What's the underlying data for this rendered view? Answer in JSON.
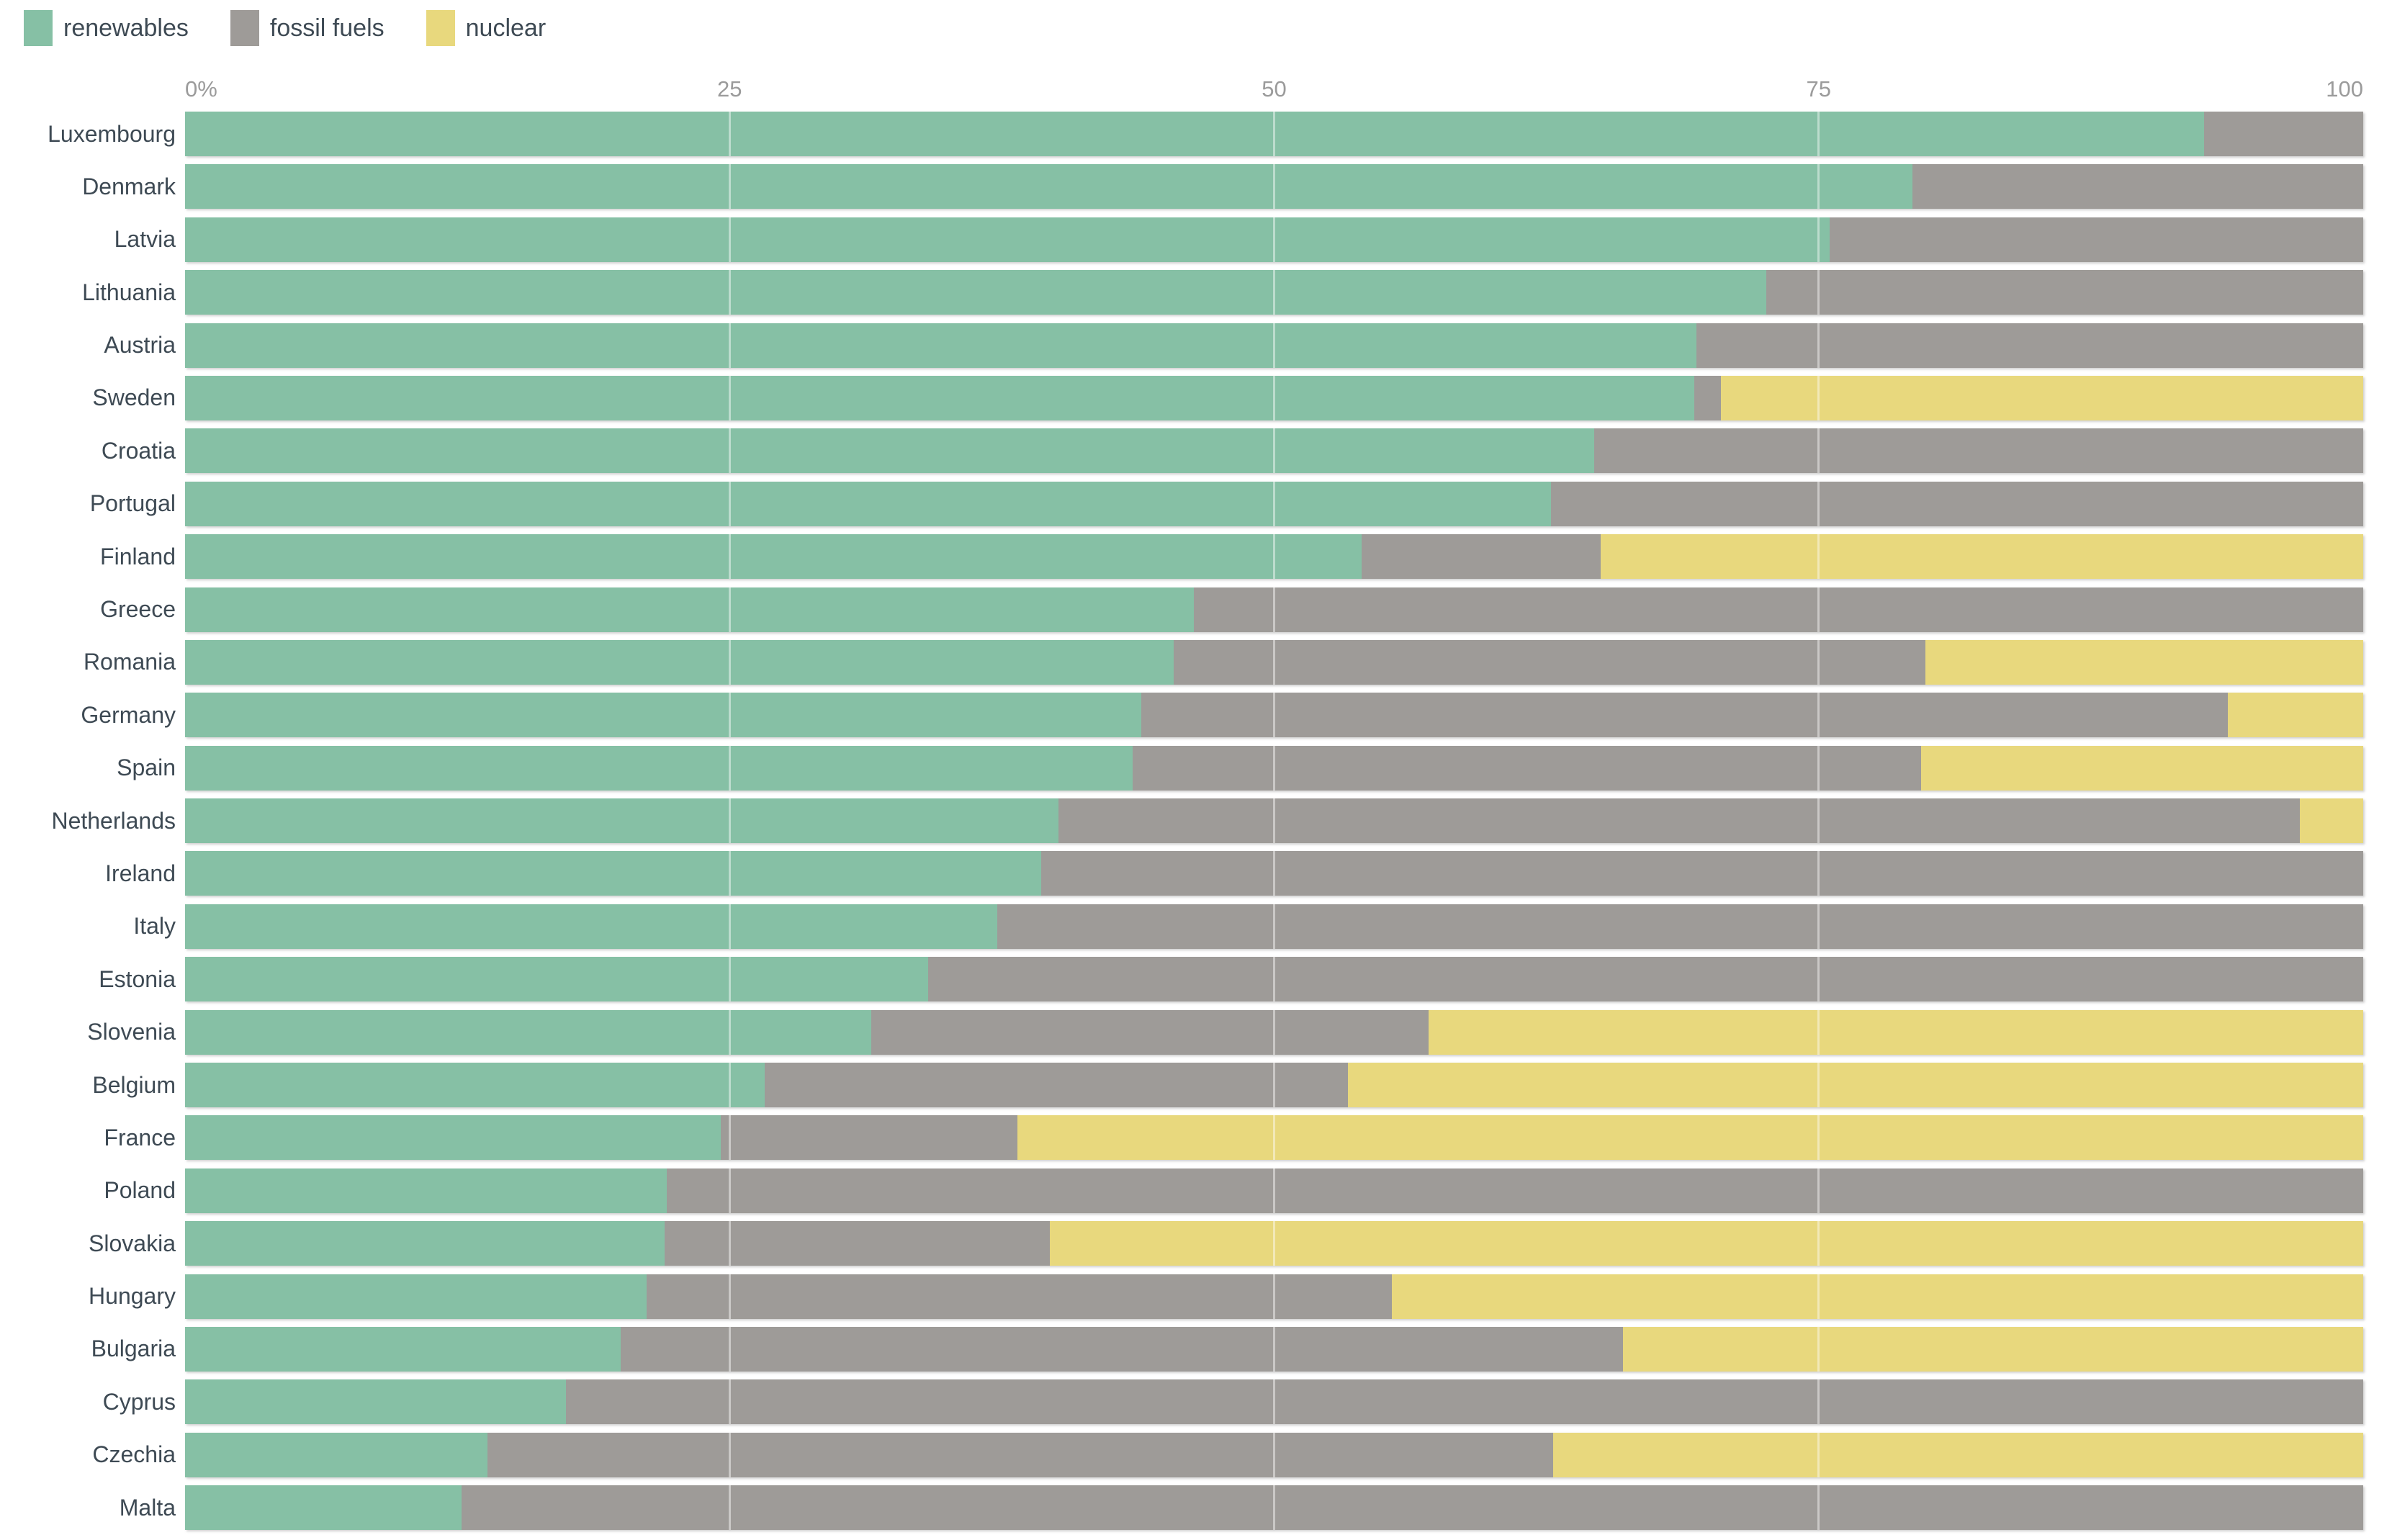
{
  "legend": {
    "items": [
      {
        "label": "renewables",
        "color": "#86C0A5"
      },
      {
        "label": "fossil fuels",
        "color": "#9E9B98"
      },
      {
        "label": "nuclear",
        "color": "#E8D87D"
      }
    ]
  },
  "axis": {
    "tick_labels": [
      "0%",
      "25",
      "50",
      "75",
      "100"
    ],
    "tick_positions": [
      0,
      25,
      50,
      75,
      100
    ]
  },
  "chart_data": {
    "type": "bar",
    "orientation": "horizontal",
    "stacked": true,
    "unit": "percent of electricity mix",
    "xlim": [
      0,
      100
    ],
    "x_ticks": [
      0,
      25,
      50,
      75,
      100
    ],
    "gridlines": [
      25,
      50,
      75
    ],
    "grid": true,
    "legend_position": "top-left",
    "categories": [
      "Luxembourg",
      "Denmark",
      "Latvia",
      "Lithuania",
      "Austria",
      "Sweden",
      "Croatia",
      "Portugal",
      "Finland",
      "Greece",
      "Romania",
      "Germany",
      "Spain",
      "Netherlands",
      "Ireland",
      "Italy",
      "Estonia",
      "Slovenia",
      "Belgium",
      "France",
      "Poland",
      "Slovakia",
      "Hungary",
      "Bulgaria",
      "Cyprus",
      "Czechia",
      "Malta"
    ],
    "series": [
      {
        "name": "renewables",
        "color": "#86C0A5",
        "values": [
          92.7,
          79.3,
          75.5,
          72.6,
          69.4,
          69.3,
          64.7,
          62.7,
          54.0,
          46.3,
          45.4,
          43.9,
          43.5,
          40.1,
          39.3,
          37.3,
          34.1,
          31.5,
          26.6,
          24.6,
          22.1,
          22.0,
          21.2,
          20.0,
          17.5,
          13.9,
          12.7
        ]
      },
      {
        "name": "fossil fuels",
        "color": "#9E9B98",
        "values": [
          7.3,
          20.7,
          24.5,
          27.4,
          30.6,
          1.2,
          35.3,
          37.3,
          11.0,
          53.7,
          34.5,
          49.9,
          36.2,
          57.0,
          60.7,
          62.7,
          65.9,
          25.6,
          26.8,
          13.6,
          77.9,
          17.7,
          34.2,
          46.0,
          82.5,
          48.9,
          87.3
        ]
      },
      {
        "name": "nuclear",
        "color": "#E8D87D",
        "values": [
          0,
          0,
          0,
          0,
          0,
          29.5,
          0,
          0,
          35.0,
          0,
          20.1,
          6.2,
          20.3,
          2.9,
          0,
          0,
          0,
          42.9,
          46.6,
          61.8,
          0,
          60.3,
          44.6,
          34.0,
          0,
          37.2,
          0
        ]
      }
    ]
  }
}
